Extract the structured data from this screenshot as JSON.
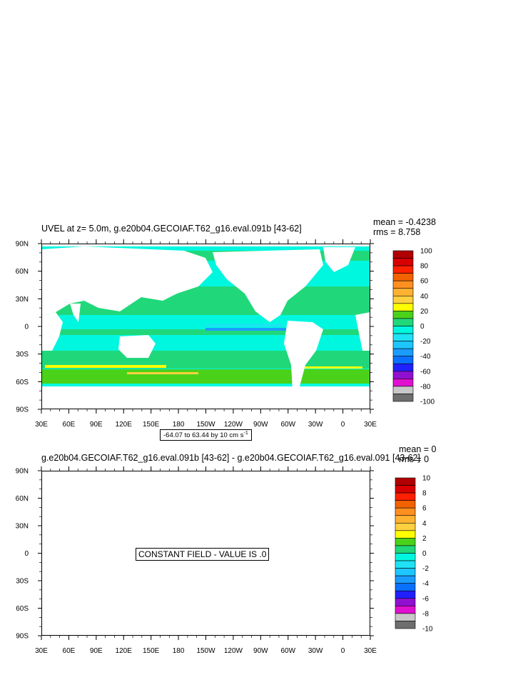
{
  "colors": [
    "#6e6e6e",
    "#c8c8c8",
    "#e010d0",
    "#9010d0",
    "#2020ff",
    "#0a70ff",
    "#1a9cff",
    "#1ec6ff",
    "#20e2f5",
    "#00f7df",
    "#20d87a",
    "#4ad21a",
    "#ffff00",
    "#ffd040",
    "#ffb232",
    "#ff9020",
    "#f26200",
    "#ff2000",
    "#d80000",
    "#b00000"
  ],
  "panel1": {
    "title": "UVEL at z=   5.0m, g.e20b04.GECOIAF.T62_g16.eval.091b [43-62]",
    "mean_text": "mean = -0.4238",
    "rms_text": "rms = 8.758",
    "ref_vector_text": "-64.07 to 63.44 by 10 cm s",
    "ref_vector_sup": "-1",
    "colorbar_labels": [
      "100",
      "80",
      "60",
      "40",
      "20",
      "0",
      "-20",
      "-40",
      "-60",
      "-80",
      "-100"
    ]
  },
  "panel2": {
    "title": "g.e20b04.GECOIAF.T62_g16.eval.091b [43-62] - g.e20b04.GECOIAF.T62_g16.eval.091 [43-62]",
    "mean_text": "mean = 0",
    "rms_text": "rms = 0",
    "constant_text": "CONSTANT FIELD - VALUE IS .0",
    "colorbar_labels": [
      "10",
      "8",
      "6",
      "4",
      "2",
      "0",
      "-2",
      "-4",
      "-6",
      "-8",
      "-10"
    ]
  },
  "axes": {
    "y_labels": [
      "90N",
      "60N",
      "30N",
      "0",
      "30S",
      "60S",
      "90S"
    ],
    "x_labels": [
      "30E",
      "60E",
      "90E",
      "120E",
      "150E",
      "180",
      "150W",
      "120W",
      "90W",
      "60W",
      "30W",
      "0",
      "30E"
    ]
  },
  "chart_data": [
    {
      "type": "heatmap",
      "title": "UVEL at z=   5.0m, g.e20b04.GECOIAF.T62_g16.eval.091b [43-62]",
      "variable": "UVEL",
      "units": "cm s-1",
      "mean": -0.4238,
      "rms": 8.758,
      "xlim": [
        "30E",
        "30E"
      ],
      "ylim": [
        "90S",
        "90N"
      ],
      "colorbar_levels": [
        -100,
        -80,
        -60,
        -40,
        -20,
        0,
        20,
        40,
        60,
        80,
        100
      ],
      "range_min": -64.07,
      "range_max": 63.44,
      "contour_interval": 10
    },
    {
      "type": "heatmap",
      "title": "g.e20b04.GECOIAF.T62_g16.eval.091b [43-62] - g.e20b04.GECOIAF.T62_g16.eval.091 [43-62]",
      "mean": 0,
      "rms": 0,
      "constant_value": 0,
      "xlim": [
        "30E",
        "30E"
      ],
      "ylim": [
        "90S",
        "90N"
      ],
      "colorbar_levels": [
        -10,
        -8,
        -6,
        -4,
        -2,
        0,
        2,
        4,
        6,
        8,
        10
      ]
    }
  ]
}
